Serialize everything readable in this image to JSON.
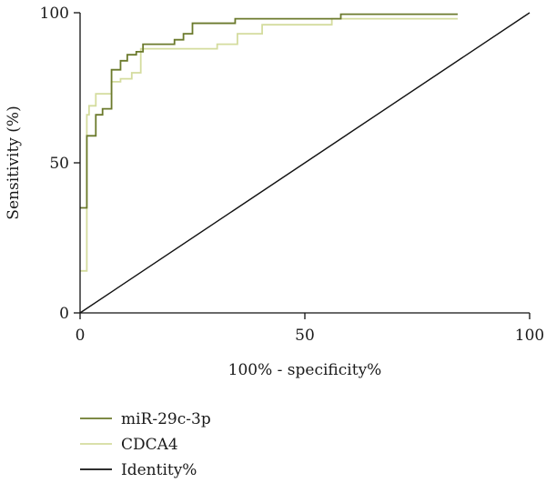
{
  "chart_data": {
    "type": "line",
    "title": "",
    "xlabel": "100% - specificity%",
    "ylabel": "Sensitivity (%)",
    "xlim": [
      0,
      100
    ],
    "ylim": [
      0,
      100
    ],
    "xticks": [
      0,
      50,
      100
    ],
    "yticks": [
      0,
      50,
      100
    ],
    "grid": false,
    "legend_position": "bottom-left",
    "series": [
      {
        "name": "miR-29c-3p",
        "color": "#6b7a2c",
        "step": true,
        "x": [
          0,
          1.5,
          1.5,
          3.5,
          3.5,
          5,
          5,
          7,
          7,
          9,
          9,
          10.5,
          10.5,
          12.5,
          12.5,
          14,
          14,
          21,
          21,
          23,
          23,
          25,
          25,
          34.5,
          34.5,
          58,
          58,
          84
        ],
        "y": [
          35,
          35,
          59,
          59,
          66,
          66,
          68,
          68,
          81,
          81,
          84,
          84,
          86,
          86,
          87,
          87,
          89.5,
          89.5,
          91,
          91,
          93,
          93,
          96.5,
          96.5,
          98,
          98,
          99.5,
          99.5
        ]
      },
      {
        "name": "CDCA4",
        "color": "#d4dc9e",
        "step": true,
        "x": [
          0,
          1.5,
          1.5,
          2,
          2,
          3.5,
          3.5,
          7,
          7,
          9,
          9,
          11.5,
          11.5,
          13.5,
          13.5,
          30.5,
          30.5,
          35,
          35,
          40.5,
          40.5,
          56,
          56,
          84
        ],
        "y": [
          14,
          14,
          66,
          66,
          69,
          69,
          73,
          73,
          77,
          77,
          78,
          78,
          80,
          80,
          88,
          88,
          89.5,
          89.5,
          93,
          93,
          96,
          96,
          98,
          98
        ]
      },
      {
        "name": "Identity%",
        "color": "#111111",
        "step": false,
        "x": [
          0,
          100
        ],
        "y": [
          0,
          100
        ]
      }
    ]
  }
}
